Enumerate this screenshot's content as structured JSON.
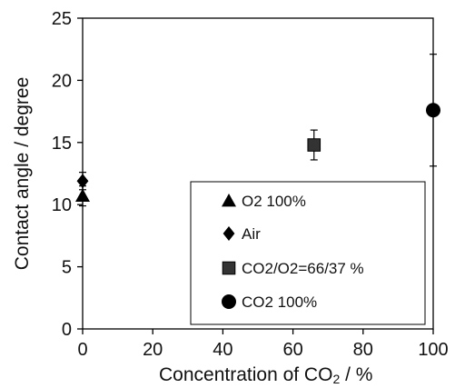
{
  "chart_data": {
    "type": "scatter",
    "xlabel": "Concentration of CO",
    "xlabel_subscript": "2",
    "xlabel_suffix": " / %",
    "ylabel": "Contact angle / degree",
    "xlim": [
      0,
      100
    ],
    "ylim": [
      0,
      25
    ],
    "x_ticks": [
      0,
      20,
      40,
      60,
      80,
      100
    ],
    "y_ticks": [
      0,
      5,
      10,
      15,
      20,
      25
    ],
    "x_tick_labels": [
      "0",
      "20",
      "40",
      "60",
      "80",
      "100"
    ],
    "y_tick_labels": [
      "0",
      "5",
      "10",
      "15",
      "20",
      "25"
    ],
    "grid": false,
    "legend_position": "bottom-right",
    "series": [
      {
        "name": "O2 100%",
        "marker": "triangle",
        "color": "#000000",
        "points": [
          {
            "x": 0,
            "y": 10.7,
            "err": 0.8
          }
        ]
      },
      {
        "name": "Air",
        "marker": "diamond",
        "color": "#000000",
        "points": [
          {
            "x": 0,
            "y": 11.9,
            "err": 0.7
          }
        ]
      },
      {
        "name": "CO2/O2=66/37 %",
        "marker": "square",
        "color": "#333333",
        "points": [
          {
            "x": 66,
            "y": 14.8,
            "err": 1.2
          }
        ]
      },
      {
        "name": "CO2 100%",
        "marker": "circle",
        "color": "#000000",
        "points": [
          {
            "x": 100,
            "y": 17.6,
            "err": 4.5
          }
        ]
      }
    ]
  }
}
